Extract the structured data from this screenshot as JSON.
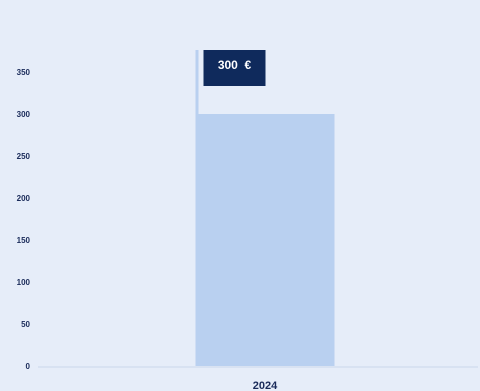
{
  "colors": {
    "background": "#e6edf9",
    "bar": "#b9d0f0",
    "axis": "#c9d6ea",
    "label_box": "#0f2a5c",
    "label_text": "#ffffff",
    "tick_text": "#1a2b5a",
    "highlight": "#b9d0f0"
  },
  "chart_data": {
    "type": "bar",
    "categories": [
      "2024"
    ],
    "values": [
      300
    ],
    "data_labels": [
      "300  €"
    ],
    "ylim": [
      0,
      350
    ],
    "yticks": [
      0,
      50,
      100,
      150,
      200,
      250,
      300,
      350
    ],
    "grid": false,
    "legend": "none"
  }
}
